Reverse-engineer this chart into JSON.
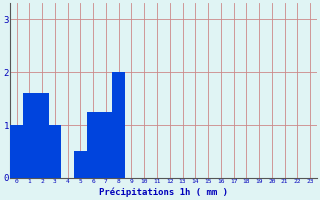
{
  "values": [
    1.0,
    1.6,
    1.6,
    1.0,
    0.0,
    0.5,
    1.25,
    1.25,
    2.0,
    0,
    0,
    0,
    0,
    0,
    0,
    0,
    0,
    0,
    0,
    0,
    0,
    0,
    0,
    0
  ],
  "bar_color": "#0044dd",
  "bg_color": "#e0f4f4",
  "grid_color": "#cc8888",
  "xlabel": "Précipitations 1h ( mm )",
  "xlabel_color": "#0000bb",
  "tick_color": "#0000bb",
  "axis_color": "#555555",
  "ylim": [
    0,
    3.3
  ],
  "yticks": [
    0,
    1,
    2,
    3
  ],
  "n_hours": 24,
  "bar_width": 1.0
}
